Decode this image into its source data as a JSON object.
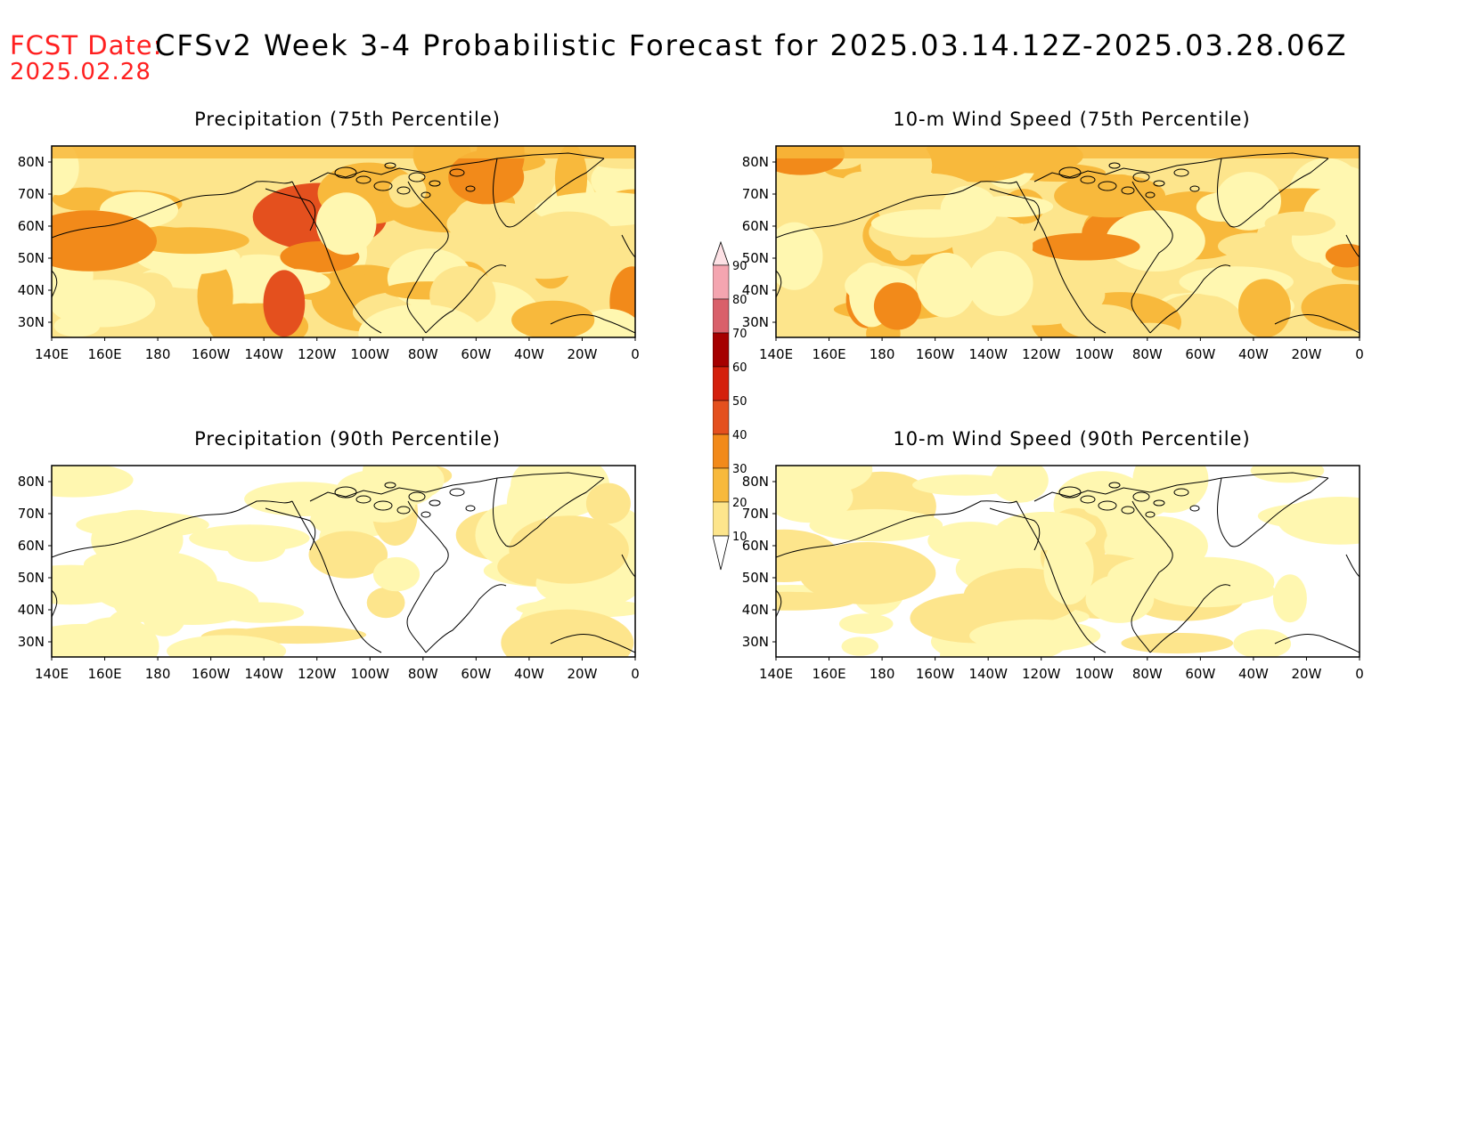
{
  "header": {
    "fcst_label": "FCST Date:",
    "fcst_date": "2025.02.28",
    "title": "CFSv2 Week 3-4 Probabilistic Forecast for 2025.03.14.12Z-2025.03.28.06Z"
  },
  "panels": [
    {
      "title": "Precipitation (75th Percentile)",
      "intensity": "high"
    },
    {
      "title": "10-m Wind Speed (75th Percentile)",
      "intensity": "high"
    },
    {
      "title": "Precipitation (90th Percentile)",
      "intensity": "low"
    },
    {
      "title": "10-m Wind Speed (90th Percentile)",
      "intensity": "low"
    }
  ],
  "axes": {
    "lat_labels": [
      "80N",
      "70N",
      "60N",
      "50N",
      "40N",
      "30N"
    ],
    "lon_labels": [
      "140E",
      "160E",
      "180",
      "160W",
      "140W",
      "120W",
      "100W",
      "80W",
      "60W",
      "40W",
      "20W",
      "0"
    ]
  },
  "colorbar": {
    "levels": [
      "10",
      "20",
      "30",
      "40",
      "50",
      "60",
      "70",
      "80",
      "90"
    ],
    "colors": [
      "#fff7b0",
      "#fde58c",
      "#f8b93c",
      "#f28a1a",
      "#e4501e",
      "#d4200c",
      "#a50000",
      "#d9606a",
      "#f4a5b0",
      "#fde1e5"
    ]
  },
  "colors": {
    "fcst_text": "#ff2020",
    "coastline": "#000000"
  }
}
